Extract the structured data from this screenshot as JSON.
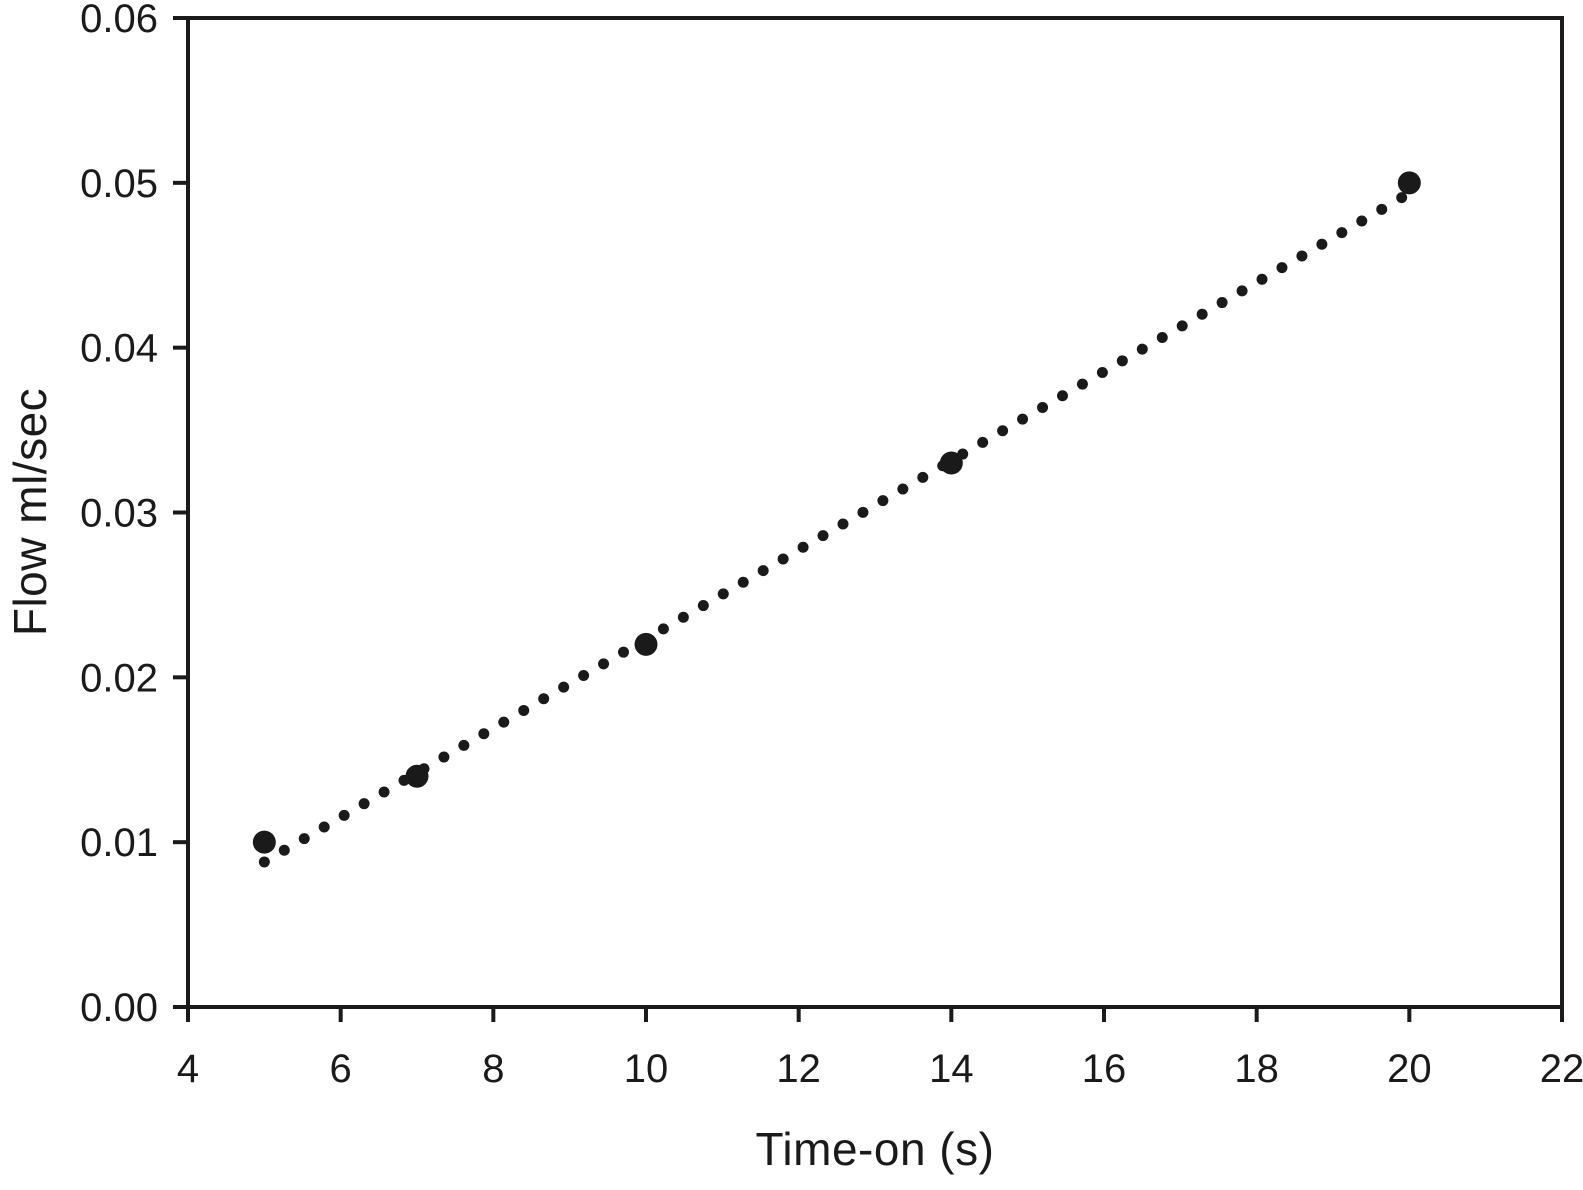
{
  "figure": {
    "background": "#ffffff",
    "ink_color": "#1a1a1a"
  },
  "chart_data": {
    "type": "scatter",
    "title": "",
    "xlabel": "Time-on (s)",
    "ylabel": "Flow ml/sec",
    "xlim": [
      4,
      22
    ],
    "ylim": [
      0.0,
      0.06
    ],
    "xticks": [
      4,
      6,
      8,
      10,
      12,
      14,
      16,
      18,
      20,
      22
    ],
    "yticks": [
      0.0,
      0.01,
      0.02,
      0.03,
      0.04,
      0.05,
      0.06
    ],
    "ytick_decimals": 2,
    "grid": false,
    "legend": "none",
    "frame": "full-box",
    "series": [
      {
        "name": "linear-fit",
        "style": "dotted-line",
        "dot_radius_px": 5.5,
        "n_dots": 58,
        "start": {
          "x": 5.0,
          "y": 0.0088
        },
        "end": {
          "x": 19.9,
          "y": 0.0491
        }
      },
      {
        "name": "measured-flow",
        "style": "filled-circle-markers",
        "marker_radius_px": 11.5,
        "points": [
          {
            "x": 5,
            "y": 0.01
          },
          {
            "x": 7,
            "y": 0.014
          },
          {
            "x": 10,
            "y": 0.022
          },
          {
            "x": 14,
            "y": 0.033
          },
          {
            "x": 20,
            "y": 0.05
          }
        ]
      }
    ]
  }
}
